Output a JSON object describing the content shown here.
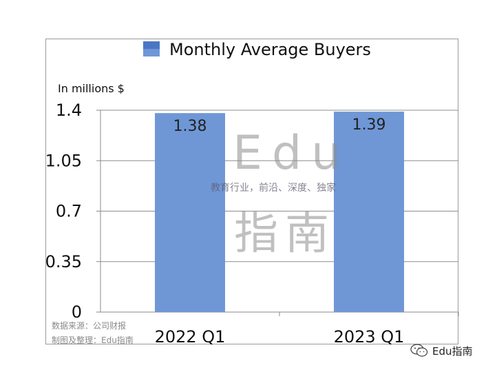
{
  "chart_data": {
    "type": "bar",
    "title": "",
    "legend": [
      "Monthly Average Buyers"
    ],
    "legend_position": "top",
    "unit_label": "In millions $",
    "categories": [
      "2022 Q1",
      "2023 Q1"
    ],
    "series": [
      {
        "name": "Monthly Average Buyers",
        "values": [
          1.38,
          1.39
        ],
        "data_labels": [
          "1.38",
          "1.39"
        ],
        "color": "#6f97d6"
      }
    ],
    "yticks": [
      "1.4",
      "1.05",
      "0.7",
      "0.35",
      "0"
    ],
    "ylim": [
      0,
      1.4
    ],
    "grid": true
  },
  "watermark": {
    "brand": "Edu",
    "tagline": "教育行业，前沿、深度、独家",
    "name_cn": "指南"
  },
  "source_note": {
    "line1": "数据来源：公司财报",
    "line2": "制图及整理：Edu指南"
  },
  "footer": {
    "brand": "Edu指南",
    "icon": "wechat-icon"
  }
}
